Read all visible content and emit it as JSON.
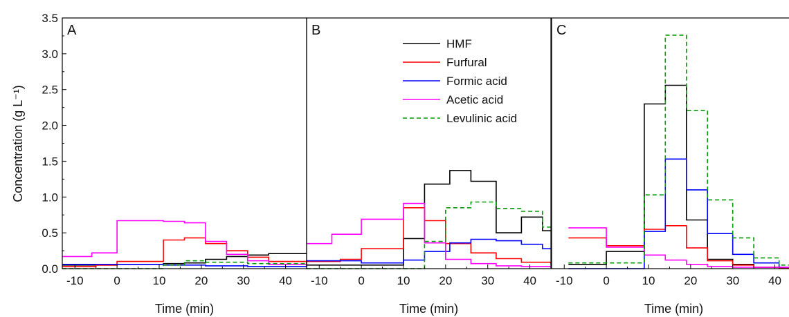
{
  "chart_data": {
    "type": "line",
    "ylabel": "Concentration (g L⁻¹)",
    "ylim": [
      0,
      3.5
    ],
    "yticks": [
      "0.0",
      "0.5",
      "1.0",
      "1.5",
      "2.0",
      "2.5",
      "3.0",
      "3.5"
    ],
    "legend": {
      "placement": "top-right of panel B",
      "entries": [
        {
          "name": "HMF",
          "color": "#000000",
          "style": "solid"
        },
        {
          "name": "Furfural",
          "color": "#ff0000",
          "style": "solid"
        },
        {
          "name": "Formic acid",
          "color": "#0000ff",
          "style": "solid"
        },
        {
          "name": "Acetic acid",
          "color": "#ff00ff",
          "style": "solid"
        },
        {
          "name": "Levulinic acid",
          "color": "#009900",
          "style": "dashed"
        }
      ]
    },
    "panels": [
      {
        "label": "A",
        "xlabel": "Time (min)",
        "xlim": [
          -13,
          45
        ],
        "xticks": [
          "-10",
          "0",
          "10",
          "20",
          "30",
          "40"
        ],
        "series": [
          {
            "name": "HMF",
            "x": [
              -13,
              0,
              11,
              16,
              21,
              26,
              31,
              36,
              45
            ],
            "y": [
              0.05,
              0.06,
              0.07,
              0.08,
              0.13,
              0.17,
              0.19,
              0.21,
              0.21
            ]
          },
          {
            "name": "Furfural",
            "x": [
              -13,
              -5,
              0,
              11,
              16,
              21,
              26,
              31,
              36,
              45
            ],
            "y": [
              0.03,
              0.05,
              0.1,
              0.4,
              0.43,
              0.35,
              0.25,
              0.16,
              0.1,
              0.06
            ]
          },
          {
            "name": "Formic acid",
            "x": [
              -13,
              0,
              11,
              21,
              31,
              45
            ],
            "y": [
              0.06,
              0.06,
              0.05,
              0.04,
              0.03,
              0.02
            ]
          },
          {
            "name": "Acetic acid",
            "x": [
              -13,
              -6,
              0,
              11,
              16,
              21,
              26,
              31,
              36,
              45
            ],
            "y": [
              0.17,
              0.22,
              0.67,
              0.66,
              0.64,
              0.38,
              0.2,
              0.11,
              0.06,
              0.04
            ]
          },
          {
            "name": "Levulinic acid",
            "x": [
              -13,
              0,
              11,
              16,
              21,
              31,
              45
            ],
            "y": [
              0.0,
              0.0,
              0.05,
              0.11,
              0.09,
              0.07,
              0.05
            ]
          }
        ]
      },
      {
        "label": "B",
        "xlabel": "Time (min)",
        "xlim": [
          -13,
          45
        ],
        "xticks": [
          "-10",
          "0",
          "10",
          "20",
          "30",
          "40"
        ],
        "series": [
          {
            "name": "HMF",
            "x": [
              -13,
              0,
              10,
              15,
              21,
              26,
              32,
              38,
              43,
              45
            ],
            "y": [
              0.05,
              0.05,
              0.42,
              1.18,
              1.37,
              1.22,
              0.5,
              0.72,
              0.53,
              0.53
            ]
          },
          {
            "name": "Furfural",
            "x": [
              -13,
              -5,
              0,
              10,
              15,
              20,
              26,
              32,
              38,
              45
            ],
            "y": [
              0.1,
              0.13,
              0.28,
              0.85,
              0.67,
              0.35,
              0.22,
              0.14,
              0.09,
              0.06
            ]
          },
          {
            "name": "Formic acid",
            "x": [
              -13,
              0,
              10,
              15,
              21,
              26,
              32,
              38,
              43,
              45
            ],
            "y": [
              0.11,
              0.08,
              0.12,
              0.24,
              0.36,
              0.41,
              0.39,
              0.34,
              0.28,
              0.28
            ]
          },
          {
            "name": "Acetic acid",
            "x": [
              -13,
              -7,
              0,
              10,
              15,
              20,
              26,
              32,
              38,
              45
            ],
            "y": [
              0.35,
              0.48,
              0.69,
              0.91,
              0.36,
              0.13,
              0.07,
              0.04,
              0.03,
              0.02
            ]
          },
          {
            "name": "Levulinic acid",
            "x": [
              -13,
              15,
              20,
              26,
              32,
              38,
              43,
              45
            ],
            "y": [
              0.0,
              0.38,
              0.85,
              0.93,
              0.84,
              0.8,
              0.58,
              0.58
            ]
          }
        ]
      },
      {
        "label": "C",
        "xlabel": "Time (min)",
        "xlim": [
          -13,
          45
        ],
        "xticks": [
          "-10",
          "0",
          "10",
          "20",
          "30",
          "40"
        ],
        "series": [
          {
            "name": "HMF",
            "x": [
              -9,
              0,
              9,
              14,
              19,
              24,
              30,
              35,
              41,
              45
            ],
            "y": [
              0.06,
              0.24,
              2.3,
              2.56,
              0.68,
              0.13,
              0.06,
              0.02,
              0.01,
              0.01
            ]
          },
          {
            "name": "Furfural",
            "x": [
              -9,
              0,
              9,
              14,
              19,
              24,
              30,
              35,
              41,
              45
            ],
            "y": [
              0.43,
              0.32,
              0.55,
              0.6,
              0.29,
              0.11,
              0.05,
              0.02,
              0.01,
              0.01
            ]
          },
          {
            "name": "Formic acid",
            "x": [
              -9,
              9,
              14,
              19,
              24,
              30,
              35,
              41,
              45
            ],
            "y": [
              0.0,
              0.52,
              1.53,
              1.1,
              0.49,
              0.2,
              0.08,
              0.02,
              0.02
            ]
          },
          {
            "name": "Acetic acid",
            "x": [
              -9,
              0,
              9,
              14,
              19,
              24,
              30,
              45
            ],
            "y": [
              0.57,
              0.3,
              0.19,
              0.12,
              0.06,
              0.03,
              0.02,
              0.02
            ]
          },
          {
            "name": "Levulinic acid",
            "x": [
              -9,
              0,
              9,
              14,
              19,
              24,
              30,
              35,
              41,
              45
            ],
            "y": [
              0.08,
              0.08,
              1.03,
              3.26,
              2.21,
              0.96,
              0.43,
              0.15,
              0.05,
              0.05
            ]
          }
        ]
      }
    ]
  }
}
